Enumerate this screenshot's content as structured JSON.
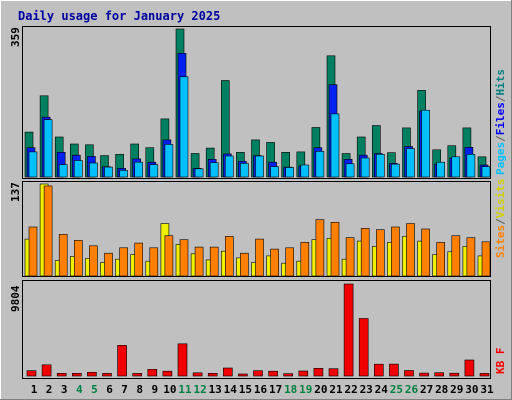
{
  "chart_data": [
    {
      "type": "bar",
      "title": "Daily usage for January 2025",
      "ymax_label": "359",
      "ylim": [
        0,
        359
      ],
      "categories": [
        "1",
        "2",
        "3",
        "4",
        "5",
        "6",
        "7",
        "8",
        "9",
        "10",
        "11",
        "12",
        "13",
        "14",
        "15",
        "16",
        "17",
        "18",
        "19",
        "20",
        "21",
        "22",
        "23",
        "24",
        "25",
        "26",
        "27",
        "28",
        "29",
        "30",
        "31"
      ],
      "weekend_days": [
        "4",
        "5",
        "11",
        "12",
        "18",
        "19",
        "25",
        "26"
      ],
      "legend": [
        {
          "name": "Pages",
          "color": "#00C0FF"
        },
        {
          "name": "/",
          "color": "#606060"
        },
        {
          "name": "Files",
          "color": "#0000FF"
        },
        {
          "name": "/",
          "color": "#606060"
        },
        {
          "name": "Hits",
          "color": "#008080"
        }
      ],
      "series": [
        {
          "name": "Hits",
          "color": "#008060",
          "values": [
            109,
            197,
            97,
            80,
            78,
            52,
            55,
            80,
            71,
            141,
            359,
            57,
            70,
            234,
            60,
            90,
            84,
            60,
            61,
            120,
            294,
            57,
            97,
            125,
            59,
            119,
            210,
            66,
            76,
            119,
            49
          ]
        },
        {
          "name": "Files",
          "color": "#0020F0",
          "values": [
            71,
            145,
            60,
            53,
            50,
            25,
            21,
            44,
            36,
            90,
            300,
            21,
            43,
            56,
            38,
            52,
            36,
            24,
            27,
            71,
            224,
            43,
            53,
            57,
            33,
            74,
            160,
            31,
            46,
            72,
            29
          ]
        },
        {
          "name": "Pages",
          "color": "#00C0FF",
          "values": [
            61,
            139,
            30,
            40,
            34,
            24,
            16,
            36,
            30,
            79,
            243,
            20,
            35,
            51,
            33,
            51,
            25,
            23,
            29,
            62,
            153,
            32,
            46,
            55,
            31,
            69,
            162,
            36,
            49,
            55,
            25
          ]
        }
      ]
    },
    {
      "type": "bar",
      "ymax_label": "137",
      "ylim": [
        0,
        137
      ],
      "legend": [
        {
          "name": "Sites",
          "color": "#FF8000"
        },
        {
          "name": "/",
          "color": "#606060"
        },
        {
          "name": "Visits",
          "color": "#FFFF00"
        }
      ],
      "series": [
        {
          "name": "Visits",
          "color": "#F0F000",
          "values": [
            55,
            137,
            23,
            29,
            26,
            20,
            25,
            32,
            22,
            78,
            47,
            33,
            24,
            37,
            27,
            20,
            30,
            19,
            22,
            54,
            56,
            25,
            52,
            44,
            50,
            59,
            52,
            32,
            36,
            44,
            30
          ]
        },
        {
          "name": "Sites",
          "color": "#FF8000",
          "values": [
            73,
            134,
            62,
            53,
            45,
            34,
            42,
            49,
            42,
            60,
            54,
            43,
            43,
            59,
            34,
            55,
            40,
            42,
            50,
            84,
            80,
            57,
            71,
            69,
            73,
            78,
            70,
            50,
            60,
            57,
            51
          ]
        }
      ]
    },
    {
      "type": "bar",
      "ymax_label": "9804",
      "ylim": [
        0,
        9804
      ],
      "legend": [
        {
          "name": "KB F",
          "color": "#FF0000"
        }
      ],
      "series": [
        {
          "name": "KB F",
          "color": "#F00000",
          "values": [
            560,
            1190,
            290,
            290,
            390,
            280,
            3270,
            280,
            710,
            510,
            3430,
            340,
            290,
            850,
            210,
            570,
            510,
            260,
            530,
            820,
            780,
            9804,
            6130,
            1260,
            1270,
            590,
            310,
            350,
            300,
            1700,
            280
          ]
        }
      ]
    }
  ]
}
